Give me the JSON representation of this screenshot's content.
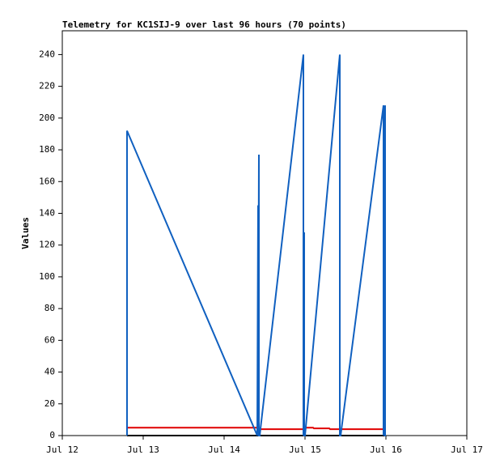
{
  "chart_data": {
    "type": "line",
    "title": "Telemetry for KC1SIJ-9 over last 96 hours (70 points)",
    "y_label": "Values",
    "xlim": [
      0,
      5
    ],
    "xticks": [
      {
        "value": 0,
        "label": "Jul 12"
      },
      {
        "value": 1,
        "label": "Jul 13"
      },
      {
        "value": 2,
        "label": "Jul 14"
      },
      {
        "value": 3,
        "label": "Jul 15"
      },
      {
        "value": 4,
        "label": "Jul 16"
      },
      {
        "value": 5,
        "label": "Jul 17"
      }
    ],
    "ylim": [
      0,
      255
    ],
    "yticks": [
      0,
      20,
      40,
      60,
      80,
      100,
      120,
      140,
      160,
      180,
      200,
      220,
      240
    ],
    "grid": false,
    "series": [
      {
        "color": "#000000",
        "x": [
          0.8,
          4.0
        ],
        "values": [
          0,
          0
        ]
      },
      {
        "color": "#e00000",
        "x": [
          0.8,
          2.41,
          2.42,
          2.98,
          2.99,
          3.1,
          3.11,
          3.3,
          3.31,
          4.0
        ],
        "values": [
          5,
          5,
          4,
          4,
          5,
          5,
          4.5,
          4.5,
          4,
          4
        ]
      },
      {
        "color": "#1060c0",
        "x": [
          0.8,
          0.8,
          2.41,
          2.42,
          2.42,
          2.43,
          2.43,
          2.44,
          2.98,
          2.98,
          2.99,
          2.99,
          3.0,
          3.43,
          3.43,
          3.44,
          3.97,
          3.97,
          3.98,
          3.98,
          3.99,
          3.99,
          4.0
        ],
        "values": [
          0,
          192,
          0,
          145,
          0,
          177,
          0,
          0,
          240,
          0,
          128,
          0,
          0,
          240,
          0,
          0,
          208,
          0,
          208,
          0,
          208,
          0,
          0
        ]
      }
    ]
  }
}
